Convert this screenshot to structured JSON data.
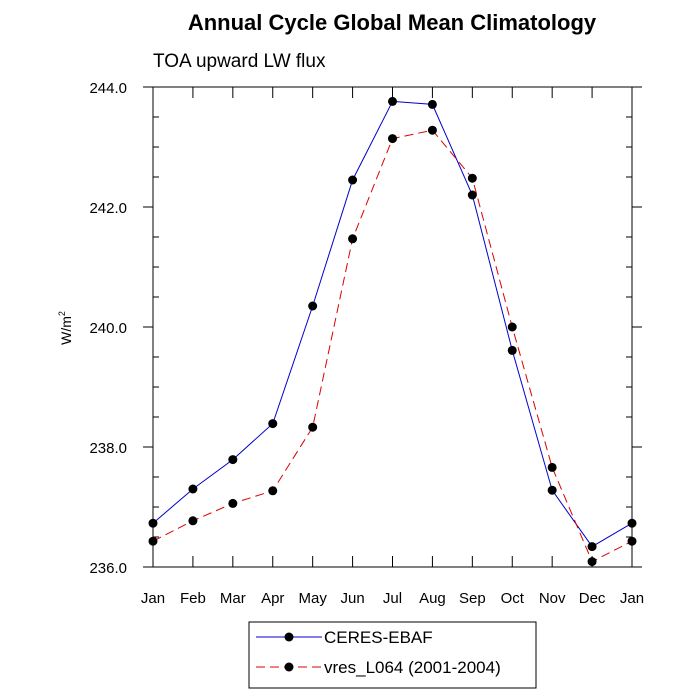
{
  "chart_data": {
    "type": "line",
    "title": "Annual Cycle Global Mean Climatology",
    "subtitle": "TOA upward LW flux",
    "ylabel": "W/m",
    "ylabel_superscript": "2",
    "xlabel": "",
    "categories": [
      "Jan",
      "Feb",
      "Mar",
      "Apr",
      "May",
      "Jun",
      "Jul",
      "Aug",
      "Sep",
      "Oct",
      "Nov",
      "Dec",
      "Jan"
    ],
    "ylim": [
      236.0,
      244.0
    ],
    "yticks": [
      "236.0",
      "238.0",
      "240.0",
      "242.0",
      "244.0"
    ],
    "grid": false,
    "legend_position": "bottom-center",
    "series": [
      {
        "name": "CERES-EBAF",
        "color": "#0000cc",
        "line_style": "solid",
        "marker": "filled-circle",
        "values": [
          236.73,
          237.3,
          237.79,
          238.39,
          240.35,
          242.45,
          243.76,
          243.71,
          242.2,
          239.61,
          237.28,
          236.34,
          236.73
        ]
      },
      {
        "name": "vres_L064 (2001-2004)",
        "color": "#dd0000",
        "line_style": "dashed",
        "marker": "filled-circle",
        "values": [
          236.43,
          236.77,
          237.06,
          237.27,
          238.33,
          241.47,
          243.14,
          243.28,
          242.48,
          240.0,
          237.66,
          236.09,
          236.43
        ]
      }
    ]
  }
}
